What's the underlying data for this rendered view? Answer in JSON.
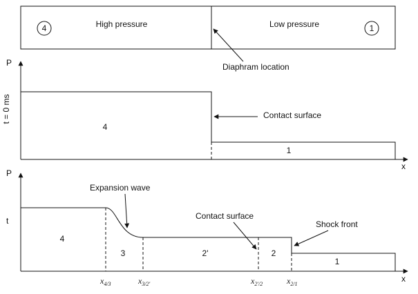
{
  "tube": {
    "region_left": "4",
    "region_right": "1",
    "high_pressure": "High pressure",
    "low_pressure": "Low pressure",
    "diaphragm": "Diaphram location"
  },
  "top_plot": {
    "y_axis": "P",
    "x_axis": "x",
    "time_label": "t = 0 ms",
    "region_high": "4",
    "region_low": "1",
    "contact_surface": "Contact surface"
  },
  "bottom_plot": {
    "y_axis": "P",
    "x_axis": "x",
    "time_label": "t",
    "expansion_wave": "Expansion wave",
    "contact_surface": "Contact surface",
    "shock_front": "Shock front",
    "regions": [
      "4",
      "3",
      "2'",
      "2",
      "1"
    ],
    "positions": [
      {
        "base": "x",
        "sub": "4/3"
      },
      {
        "base": "x",
        "sub": "3/2'"
      },
      {
        "base": "x",
        "sub": "2'/2"
      },
      {
        "base": "x",
        "sub": "2/1"
      }
    ]
  }
}
